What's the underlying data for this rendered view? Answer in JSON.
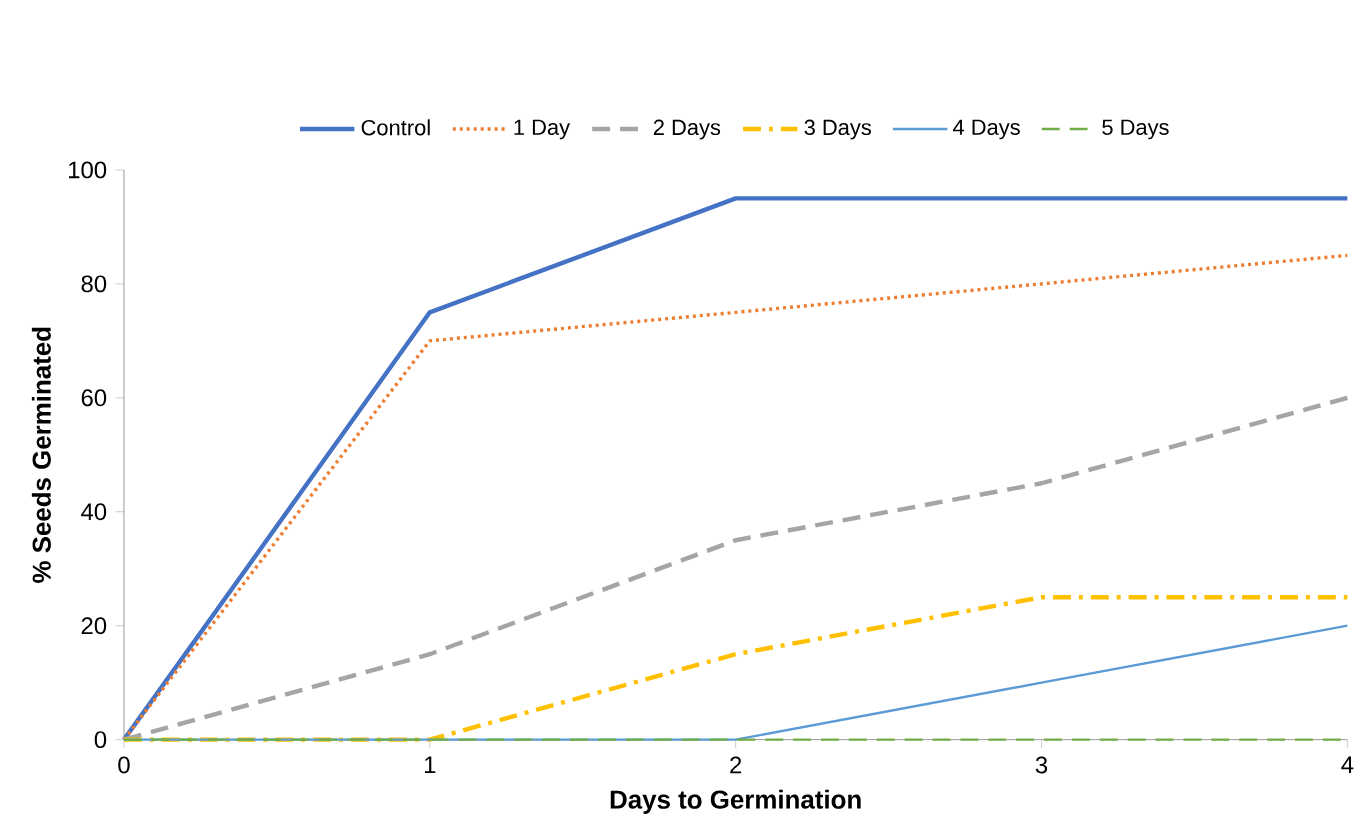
{
  "chart_data": {
    "type": "line",
    "xlabel": "Days to Germination",
    "ylabel": "% Seeds Germinated",
    "x": [
      0,
      1,
      2,
      3,
      4
    ],
    "series": [
      {
        "name": "Control",
        "color": "#4472c4",
        "values": [
          0,
          75,
          95,
          95,
          95
        ],
        "line_style": "solid"
      },
      {
        "name": "1 Day",
        "color": "#ed7d31",
        "values": [
          0,
          70,
          75,
          80,
          85
        ],
        "line_style": "dotted"
      },
      {
        "name": "2 Days",
        "color": "#a5a5a5",
        "values": [
          0,
          15,
          35,
          45,
          60
        ],
        "line_style": "dashed"
      },
      {
        "name": "3 Days",
        "color": "#ffc000",
        "values": [
          0,
          0,
          15,
          25,
          25
        ],
        "line_style": "dashdot"
      },
      {
        "name": "4 Days",
        "color": "#5b9bd5",
        "values": [
          0,
          0,
          0,
          10,
          20
        ],
        "line_style": "solid"
      },
      {
        "name": "5 Days",
        "color": "#70ad47",
        "values": [
          0,
          0,
          0,
          0,
          0
        ],
        "line_style": "dashed"
      }
    ],
    "xlim": [
      0,
      4
    ],
    "ylim": [
      0,
      100
    ],
    "xticks": [
      0,
      1,
      2,
      3,
      4
    ],
    "yticks": [
      0,
      20,
      40,
      60,
      80,
      100
    ],
    "grid": false,
    "legend": "top",
    "marker": "none"
  }
}
